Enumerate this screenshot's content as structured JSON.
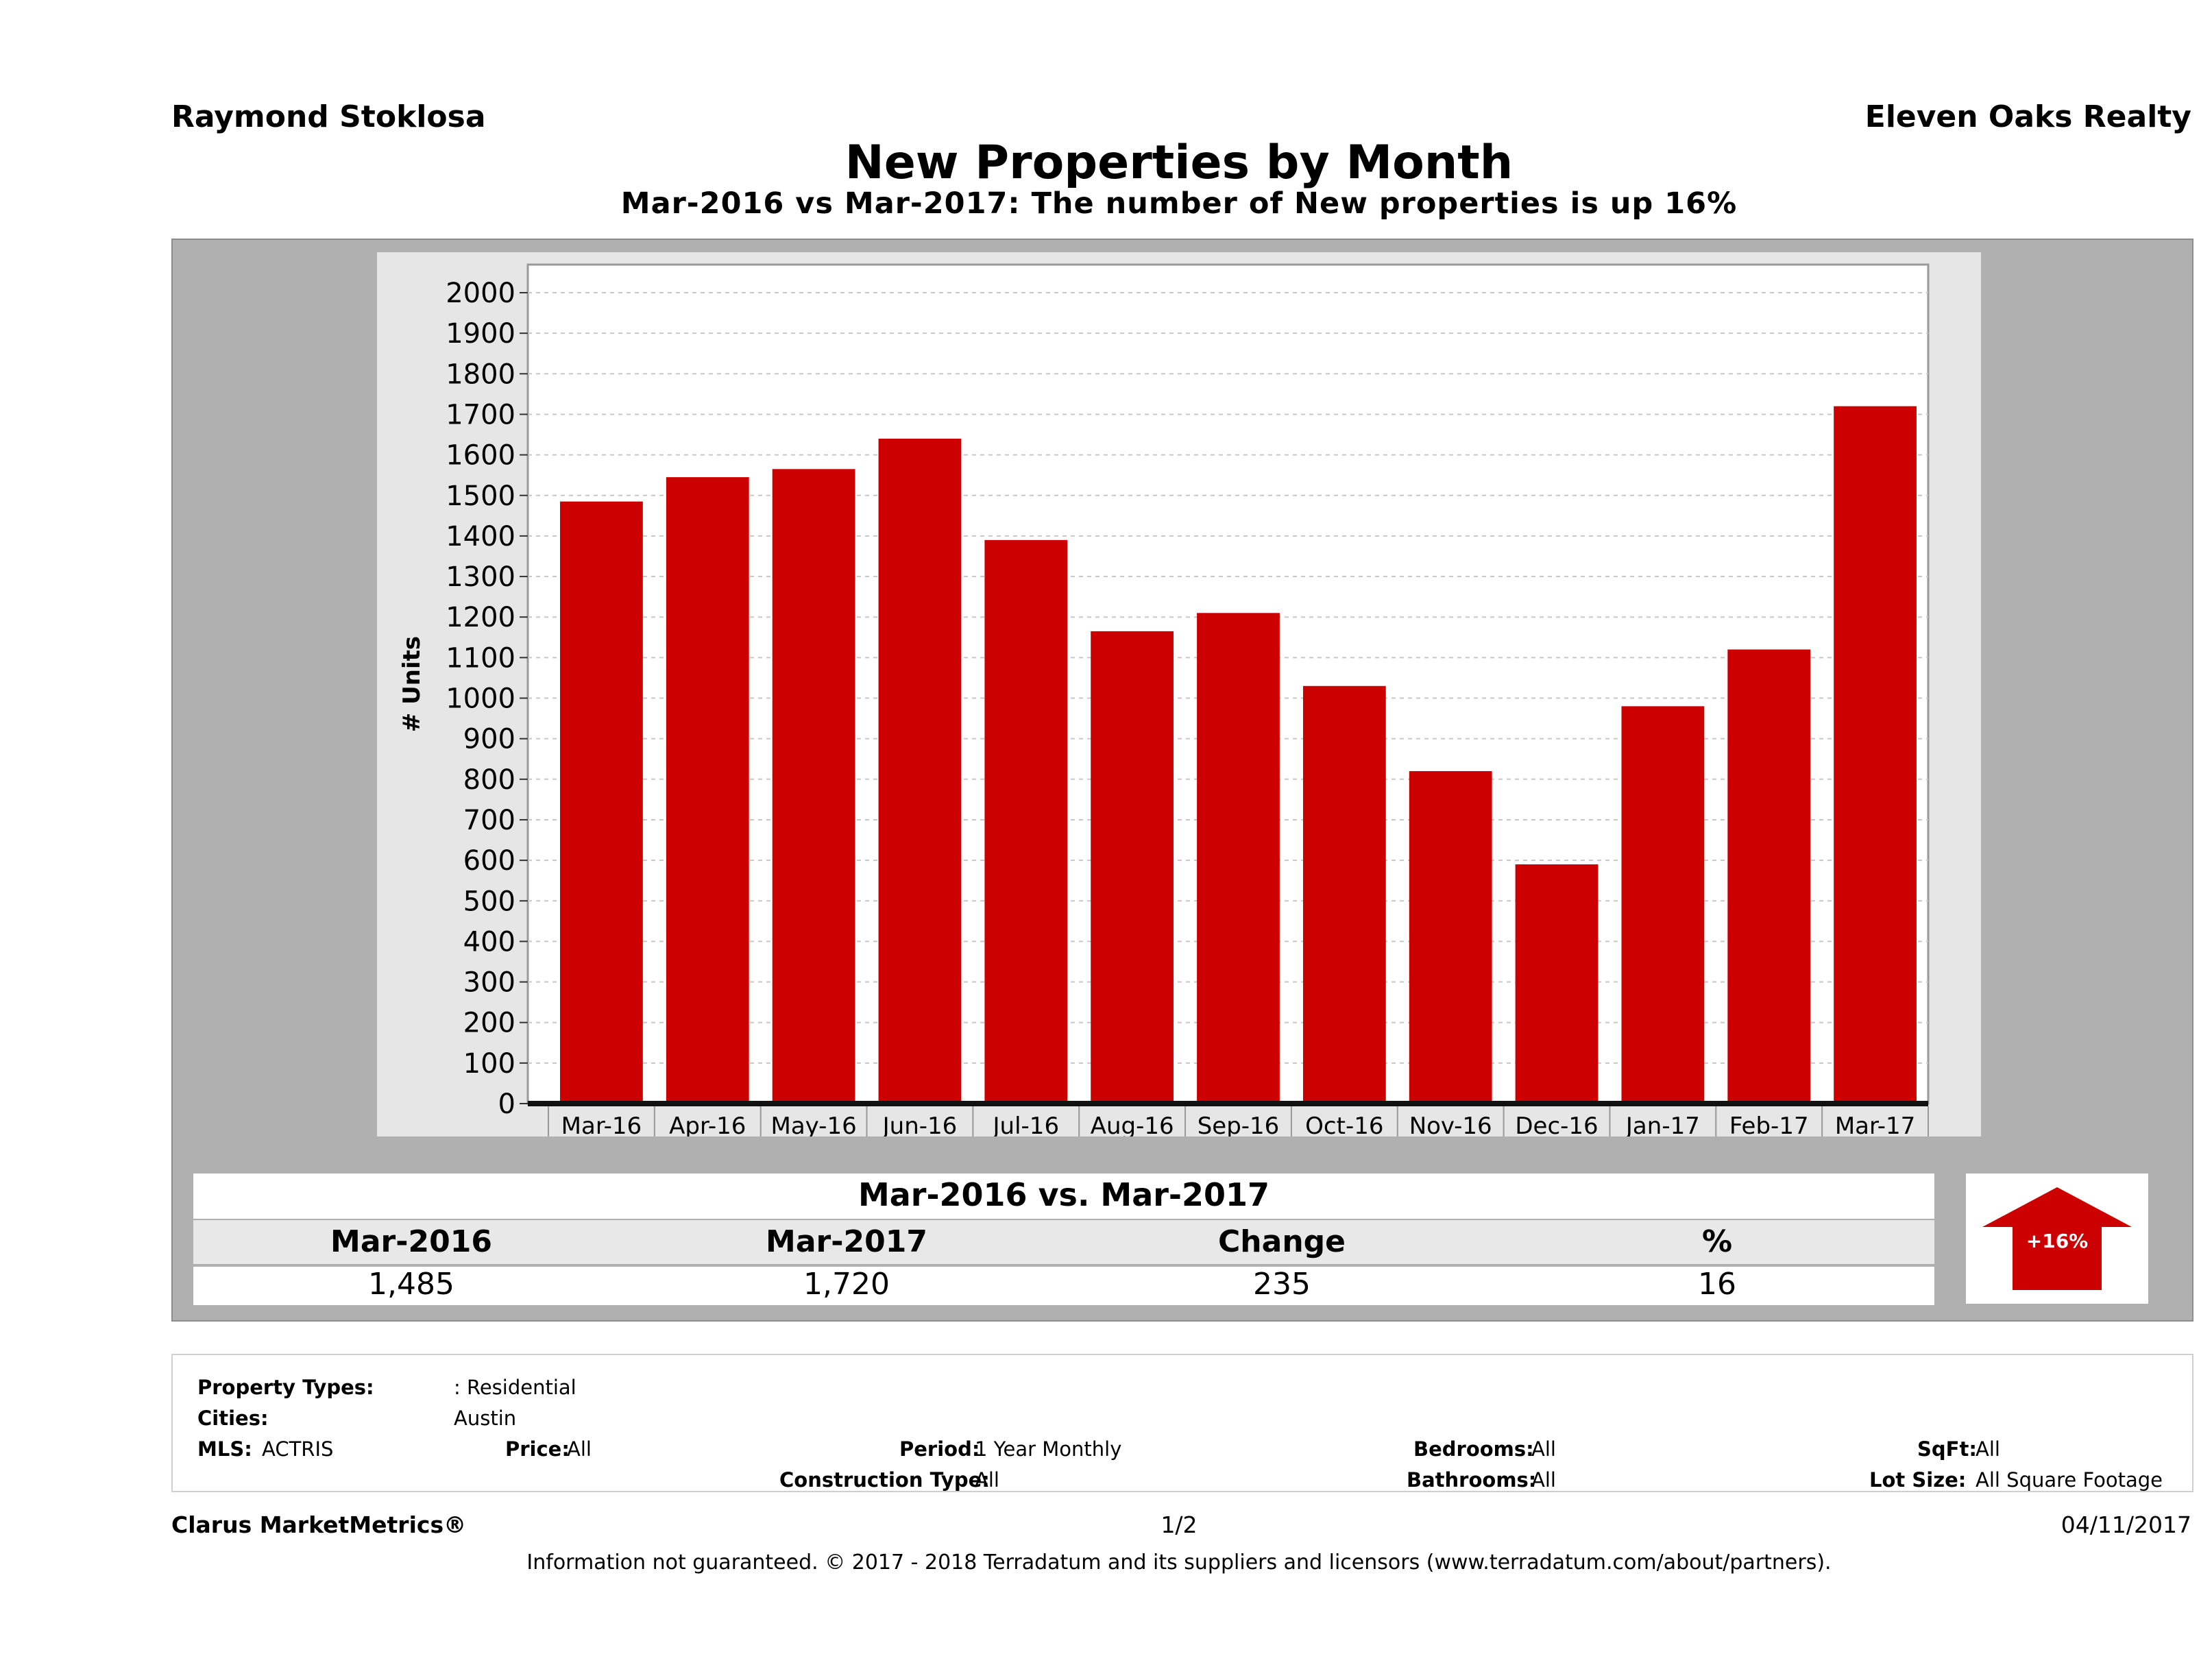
{
  "header": {
    "agent": "Raymond Stoklosa",
    "company": "Eleven Oaks Realty",
    "title": "New Properties by Month",
    "subtitle": "Mar-2016 vs Mar-2017: The number of New  properties is up 16%"
  },
  "chart_data": {
    "type": "bar",
    "ylabel": "# Units",
    "ylim": [
      0,
      2000
    ],
    "yticks": [
      0,
      100,
      200,
      300,
      400,
      500,
      600,
      700,
      800,
      900,
      1000,
      1100,
      1200,
      1300,
      1400,
      1500,
      1600,
      1700,
      1800,
      1900,
      2000
    ],
    "categories": [
      "Mar-16",
      "Apr-16",
      "May-16",
      "Jun-16",
      "Jul-16",
      "Aug-16",
      "Sep-16",
      "Oct-16",
      "Nov-16",
      "Dec-16",
      "Jan-17",
      "Feb-17",
      "Mar-17"
    ],
    "values": [
      1485,
      1545,
      1565,
      1640,
      1390,
      1165,
      1210,
      1030,
      820,
      590,
      980,
      1120,
      1720
    ],
    "bar_color": "#cc0000",
    "grid": true
  },
  "summary": {
    "title": "Mar-2016 vs. Mar-2017",
    "headers": [
      "Mar-2016",
      "Mar-2017",
      "Change",
      "%"
    ],
    "values": [
      "1,485",
      "1,720",
      "235",
      "16"
    ],
    "badge": "+16%",
    "badge_color": "#cc0000"
  },
  "filters": {
    "property_types_label": "Property Types:",
    "property_types_value": ": Residential",
    "cities_label": "Cities:",
    "cities_value": "Austin",
    "mls_label": "MLS:",
    "mls_value": "ACTRIS",
    "price_label": "Price:",
    "price_value": "All",
    "period_label": "Period:",
    "period_value": "1 Year Monthly",
    "construction_label": "Construction Type:",
    "construction_value": "All",
    "bedrooms_label": "Bedrooms:",
    "bedrooms_value": "All",
    "bathrooms_label": "Bathrooms:",
    "bathrooms_value": "All",
    "sqft_label": "SqFt:",
    "sqft_value": "All",
    "lotsize_label": "Lot Size:",
    "lotsize_value": "All Square Footage"
  },
  "footer": {
    "brand": "Clarus MarketMetrics®",
    "page": "1/2",
    "date": "04/11/2017",
    "disclaimer": "Information not guaranteed. © 2017 - 2018 Terradatum and its suppliers and licensors (www.terradatum.com/about/partners)."
  }
}
